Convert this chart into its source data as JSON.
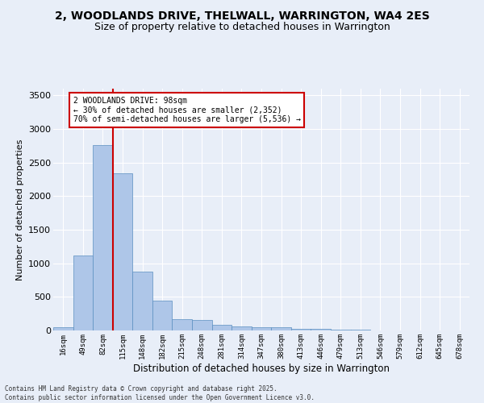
{
  "title_line1": "2, WOODLANDS DRIVE, THELWALL, WARRINGTON, WA4 2ES",
  "title_line2": "Size of property relative to detached houses in Warrington",
  "xlabel": "Distribution of detached houses by size in Warrington",
  "ylabel": "Number of detached properties",
  "categories": [
    "16sqm",
    "49sqm",
    "82sqm",
    "115sqm",
    "148sqm",
    "182sqm",
    "215sqm",
    "248sqm",
    "281sqm",
    "314sqm",
    "347sqm",
    "380sqm",
    "413sqm",
    "446sqm",
    "479sqm",
    "513sqm",
    "546sqm",
    "579sqm",
    "612sqm",
    "645sqm",
    "678sqm"
  ],
  "values": [
    50,
    1120,
    2760,
    2340,
    880,
    440,
    170,
    160,
    90,
    60,
    45,
    45,
    30,
    20,
    15,
    10,
    5,
    5,
    3,
    2,
    2
  ],
  "bar_color": "#aec6e8",
  "bar_edge_color": "#5a8fc0",
  "background_color": "#e8eef8",
  "grid_color": "#ffffff",
  "vline_x": 2.5,
  "vline_color": "#cc0000",
  "annotation_title": "2 WOODLANDS DRIVE: 98sqm",
  "annotation_line1": "← 30% of detached houses are smaller (2,352)",
  "annotation_line2": "70% of semi-detached houses are larger (5,536) →",
  "annotation_box_color": "#ffffff",
  "annotation_box_edge_color": "#cc0000",
  "footer_line1": "Contains HM Land Registry data © Crown copyright and database right 2025.",
  "footer_line2": "Contains public sector information licensed under the Open Government Licence v3.0.",
  "ylim": [
    0,
    3600
  ],
  "yticks": [
    0,
    500,
    1000,
    1500,
    2000,
    2500,
    3000,
    3500
  ]
}
